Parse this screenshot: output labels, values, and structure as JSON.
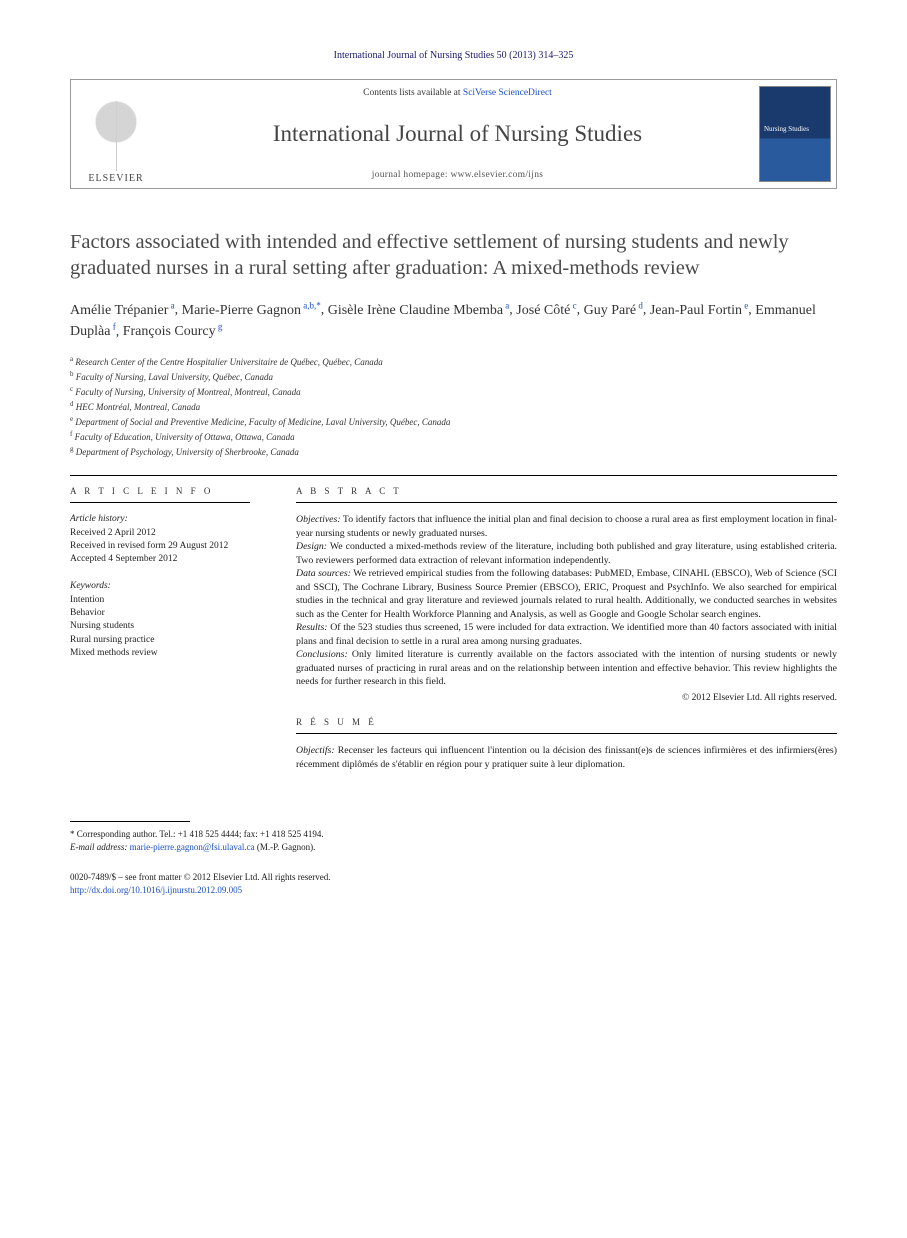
{
  "header": {
    "citation": "International Journal of Nursing Studies 50 (2013) 314–325",
    "contents_prefix": "Contents lists available at ",
    "contents_link": "SciVerse ScienceDirect",
    "journal_name": "International Journal of Nursing Studies",
    "homepage_label": "journal homepage: www.elsevier.com/ijns",
    "publisher_label": "ELSEVIER"
  },
  "title": "Factors associated with intended and effective settlement of nursing students and newly graduated nurses in a rural setting after graduation: A mixed-methods review",
  "authors": [
    {
      "name": "Amélie Trépanier",
      "aff": "a"
    },
    {
      "name": "Marie-Pierre Gagnon",
      "aff": "a,b,*"
    },
    {
      "name": "Gisèle Irène Claudine Mbemba",
      "aff": "a"
    },
    {
      "name": "José Côté",
      "aff": "c"
    },
    {
      "name": "Guy Paré",
      "aff": "d"
    },
    {
      "name": "Jean-Paul Fortin",
      "aff": "e"
    },
    {
      "name": "Emmanuel Duplàa",
      "aff": "f"
    },
    {
      "name": "François Courcy",
      "aff": "g"
    }
  ],
  "affiliations": [
    {
      "key": "a",
      "text": "Research Center of the Centre Hospitalier Universitaire de Québec, Québec, Canada"
    },
    {
      "key": "b",
      "text": "Faculty of Nursing, Laval University, Québec, Canada"
    },
    {
      "key": "c",
      "text": "Faculty of Nursing, University of Montreal, Montreal, Canada"
    },
    {
      "key": "d",
      "text": "HEC Montréal, Montreal, Canada"
    },
    {
      "key": "e",
      "text": "Department of Social and Preventive Medicine, Faculty of Medicine, Laval University, Québec, Canada"
    },
    {
      "key": "f",
      "text": "Faculty of Education, University of Ottawa, Ottawa, Canada"
    },
    {
      "key": "g",
      "text": "Department of Psychology, University of Sherbrooke, Canada"
    }
  ],
  "article_info": {
    "heading": "A R T I C L E  I N F O",
    "history_label": "Article history:",
    "history": [
      "Received 2 April 2012",
      "Received in revised form 29 August 2012",
      "Accepted 4 September 2012"
    ],
    "keywords_label": "Keywords:",
    "keywords": [
      "Intention",
      "Behavior",
      "Nursing students",
      "Rural nursing practice",
      "Mixed methods review"
    ]
  },
  "abstract": {
    "heading": "A B S T R A C T",
    "segments": [
      {
        "label": "Objectives:",
        "text": "To identify factors that influence the initial plan and final decision to choose a rural area as first employment location in final-year nursing students or newly graduated nurses."
      },
      {
        "label": "Design:",
        "text": "We conducted a mixed-methods review of the literature, including both published and gray literature, using established criteria. Two reviewers performed data extraction of relevant information independently."
      },
      {
        "label": "Data sources:",
        "text": "We retrieved empirical studies from the following databases: PubMED, Embase, CINAHL (EBSCO), Web of Science (SCI and SSCI), The Cochrane Library, Business Source Premier (EBSCO), ERIC, Proquest and PsychInfo. We also searched for empirical studies in the technical and gray literature and reviewed journals related to rural health. Additionally, we conducted searches in websites such as the Center for Health Workforce Planning and Analysis, as well as Google and Google Scholar search engines."
      },
      {
        "label": "Results:",
        "text": "Of the 523 studies thus screened, 15 were included for data extraction. We identified more than 40 factors associated with initial plans and final decision to settle in a rural area among nursing graduates."
      },
      {
        "label": "Conclusions:",
        "text": "Only limited literature is currently available on the factors associated with the intention of nursing students or newly graduated nurses of practicing in rural areas and on the relationship between intention and effective behavior. This review highlights the needs for further research in this field."
      }
    ],
    "copyright": "© 2012 Elsevier Ltd. All rights reserved."
  },
  "resume": {
    "heading": "R É S U M É",
    "segments": [
      {
        "label": "Objectifs:",
        "text": "Recenser les facteurs qui influencent l'intention ou la décision des finissant(e)s de sciences infirmières et des infirmiers(ères) récemment diplômés de s'établir en région pour y pratiquer suite à leur diplomation."
      }
    ]
  },
  "footer": {
    "corresponding_label": "* Corresponding author. Tel.: +1 418 525 4444; fax: +1 418 525 4194.",
    "email_label": "E-mail address:",
    "email": "marie-pierre.gagnon@fsi.ulaval.ca",
    "email_suffix": "(M.-P. Gagnon).",
    "issn": "0020-7489/$ – see front matter © 2012 Elsevier Ltd. All rights reserved.",
    "doi": "http://dx.doi.org/10.1016/j.ijnurstu.2012.09.005"
  },
  "colors": {
    "link": "#1a4fc4",
    "text": "#1a1a1a",
    "title_gray": "#4a4a4a",
    "cover_top": "#1a3a6e",
    "cover_bottom": "#2a5a9e"
  },
  "typography": {
    "title_pt": 20.5,
    "author_pt": 14,
    "body_pt": 9.8,
    "affil_pt": 9,
    "journal_name_pt": 23
  }
}
